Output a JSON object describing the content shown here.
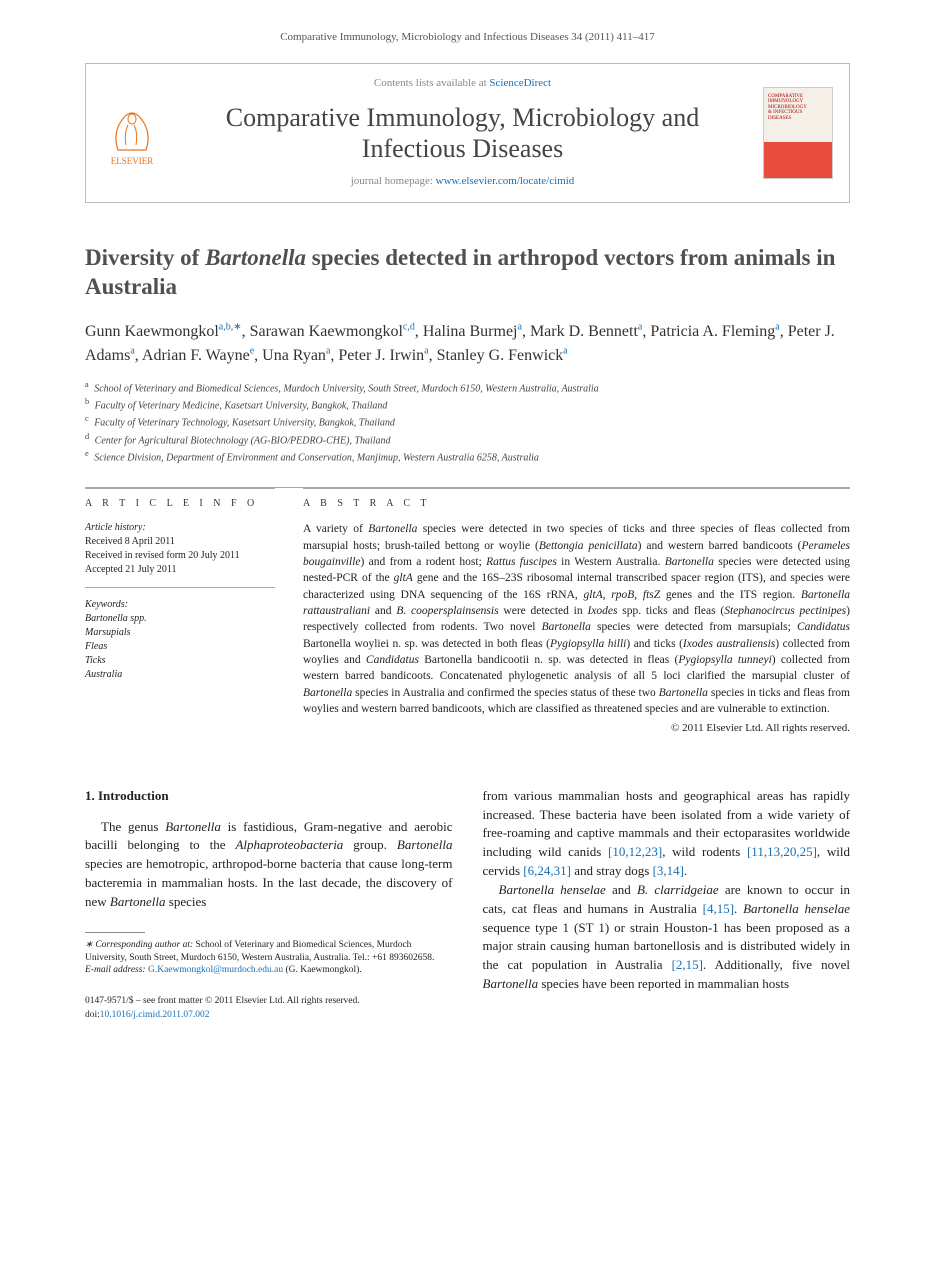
{
  "citation": "Comparative Immunology, Microbiology and Infectious Diseases 34 (2011) 411–417",
  "header": {
    "contents_prefix": "Contents lists available at ",
    "contents_link": "ScienceDirect",
    "journal_name": "Comparative Immunology, Microbiology and Infectious Diseases",
    "homepage_prefix": "journal homepage: ",
    "homepage_url": "www.elsevier.com/locate/cimid",
    "publisher": "ELSEVIER"
  },
  "title_part1": "Diversity of ",
  "title_ital": "Bartonella",
  "title_part2": " species detected in arthropod vectors from animals in Australia",
  "authors_html": "Gunn Kaewmongkol<sup>a,b,∗</sup>, Sarawan Kaewmongkol<sup>c,d</sup>, Halina Burmej<sup>a</sup>, Mark D. Bennett<sup>a</sup>, Patricia A. Fleming<sup>a</sup>, Peter J. Adams<sup>a</sup>, Adrian F. Wayne<sup>e</sup>, Una Ryan<sup>a</sup>, Peter J. Irwin<sup>a</sup>, Stanley G. Fenwick<sup>a</sup>",
  "affiliations": [
    {
      "sup": "a",
      "text": "School of Veterinary and Biomedical Sciences, Murdoch University, South Street, Murdoch 6150, Western Australia, Australia"
    },
    {
      "sup": "b",
      "text": "Faculty of Veterinary Medicine, Kasetsart University, Bangkok, Thailand"
    },
    {
      "sup": "c",
      "text": "Faculty of Veterinary Technology, Kasetsart University, Bangkok, Thailand"
    },
    {
      "sup": "d",
      "text": "Center for Agricultural Biotechnology (AG-BIO/PEDRO-CHE), Thailand"
    },
    {
      "sup": "e",
      "text": "Science Division, Department of Environment and Conservation, Manjimup, Western Australia 6258, Australia"
    }
  ],
  "info": {
    "heading": "A R T I C L E   I N F O",
    "history_label": "Article history:",
    "received": "Received 8 April 2011",
    "revised": "Received in revised form 20 July 2011",
    "accepted": "Accepted 21 July 2011",
    "kw_label": "Keywords:",
    "keywords": [
      "Bartonella spp.",
      "Marsupials",
      "Fleas",
      "Ticks",
      "Australia"
    ]
  },
  "abstract": {
    "heading": "A B S T R A C T",
    "text_html": "A variety of <em>Bartonella</em> species were detected in two species of ticks and three species of fleas collected from marsupial hosts; brush-tailed bettong or woylie (<em>Bettongia penicillata</em>) and western barred bandicoots (<em>Perameles bougainville</em>) and from a rodent host; <em>Rattus fuscipes</em> in Western Australia. <em>Bartonella</em> species were detected using nested-PCR of the <em>gltA</em> gene and the 16S–23S ribosomal internal transcribed spacer region (ITS), and species were characterized using DNA sequencing of the 16S rRNA, <em>gltA</em>, <em>rpoB</em>, <em>ftsZ</em> genes and the ITS region. <em>Bartonella rattaustraliani</em> and <em>B. coopersplainsensis</em> were detected in <em>Ixodes</em> spp. ticks and fleas (<em>Stephanocircus pectinipes</em>) respectively collected from rodents. Two novel <em>Bartonella</em> species were detected from marsupials; <em>Candidatus</em> Bartonella woyliei n. sp. was detected in both fleas (<em>Pygiopsylla hilli</em>) and ticks (<em>Ixodes australiensis</em>) collected from woylies and <em>Candidatus</em> Bartonella bandicootii n. sp. was detected in fleas (<em>Pygiopsylla tunneyi</em>) collected from western barred bandicoots. Concatenated phylogenetic analysis of all 5 loci clarified the marsupial cluster of <em>Bartonella</em> species in Australia and confirmed the species status of these two <em>Bartonella</em> species in ticks and fleas from woylies and western barred bandicoots, which are classified as threatened species and are vulnerable to extinction.",
    "copyright": "© 2011 Elsevier Ltd. All rights reserved."
  },
  "body": {
    "section_heading": "1.  Introduction",
    "col1_p1_html": "The genus <em>Bartonella</em> is fastidious, Gram-negative and aerobic bacilli belonging to the <em>Alphaproteobacteria</em> group. <em>Bartonella</em> species are hemotropic, arthropod-borne bacteria that cause long-term bacteremia in mammalian hosts. In the last decade, the discovery of new <em>Bartonella</em> species",
    "col2_p1_html": "from various mammalian hosts and geographical areas has rapidly increased. These bacteria have been isolated from a wide variety of free-roaming and captive mammals and their ectoparasites worldwide including wild canids <span class=\"ref-link\">[10,12,23]</span>, wild rodents <span class=\"ref-link\">[11,13,20,25]</span>, wild cervids <span class=\"ref-link\">[6,24,31]</span> and stray dogs <span class=\"ref-link\">[3,14]</span>.",
    "col2_p2_html": "<em>Bartonella henselae</em> and <em>B. clarridgeiae</em> are known to occur in cats, cat fleas and humans in Australia <span class=\"ref-link\">[4,15]</span>. <em>Bartonella henselae</em> sequence type 1 (ST 1) or strain Houston-1 has been proposed as a major strain causing human bartonellosis and is distributed widely in the cat population in Australia <span class=\"ref-link\">[2,15]</span>. Additionally, five novel <em>Bartonella</em> species have been reported in mammalian hosts"
  },
  "footnote": {
    "corr_label": "∗ Corresponding author at:",
    "corr_text": " School of Veterinary and Biomedical Sciences, Murdoch University, South Street, Murdoch 6150, Western Australia, Australia. Tel.: +61 893602658.",
    "email_label": "E-mail address:",
    "email": "G.Kaewmongkol@murdoch.edu.au",
    "email_suffix": " (G. Kaewmongkol)."
  },
  "doi": {
    "front_matter": "0147-9571/$ – see front matter © 2011 Elsevier Ltd. All rights reserved.",
    "doi_label": "doi:",
    "doi_value": "10.1016/j.cimid.2011.07.002"
  },
  "colors": {
    "link": "#1a6fb3",
    "elsevier_orange": "#e9711c"
  }
}
